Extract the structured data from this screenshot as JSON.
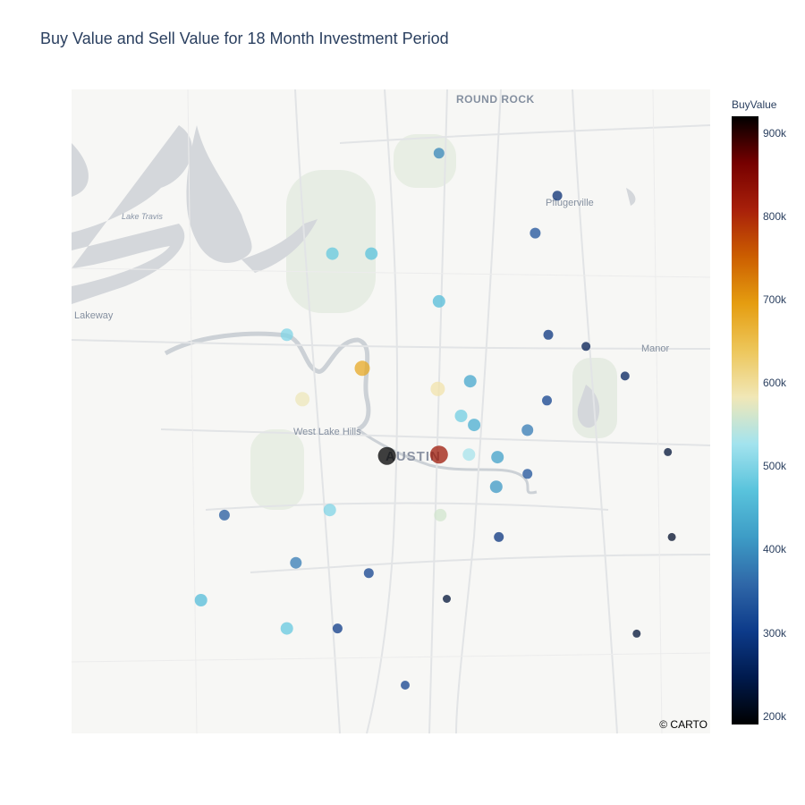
{
  "title": "Buy Value and Sell Value for 18 Month Investment Period",
  "attribution": "© CARTO",
  "map_labels": {
    "round_rock": "ROUND ROCK",
    "pflugerville": "Pflugerville",
    "lake_travis": "Lake Travis",
    "lakeway": "Lakeway",
    "manor": "Manor",
    "west_lake_hills": "West Lake Hills",
    "austin": "AUSTIN"
  },
  "colorbar": {
    "title": "BuyValue",
    "min": 190000,
    "max": 920000,
    "ticks": [
      {
        "label": "900k",
        "value": 900000
      },
      {
        "label": "800k",
        "value": 800000
      },
      {
        "label": "700k",
        "value": 700000
      },
      {
        "label": "600k",
        "value": 600000
      },
      {
        "label": "500k",
        "value": 500000
      },
      {
        "label": "400k",
        "value": 400000
      },
      {
        "label": "300k",
        "value": 300000
      },
      {
        "label": "200k",
        "value": 200000
      }
    ],
    "colorscale": [
      "#000000",
      "#001a4d",
      "#0d3b8a",
      "#2f67a8",
      "#3d9cc6",
      "#59c3dc",
      "#a3e3ee",
      "#f1e7b6",
      "#edc65a",
      "#e59d10",
      "#cc5e00",
      "#a8200a",
      "#760000",
      "#000000"
    ]
  },
  "chart_data": {
    "type": "scatter",
    "title": "Buy Value and Sell Value for 18 Month Investment Period",
    "color_variable": "BuyValue",
    "size_variable": "Sell Value",
    "points": [
      {
        "lon": -97.681,
        "lat": 30.503,
        "buy": 390000,
        "size": 12
      },
      {
        "lon": -97.59,
        "lat": 30.47,
        "buy": 280000,
        "size": 11
      },
      {
        "lon": -97.607,
        "lat": 30.441,
        "buy": 330000,
        "size": 12
      },
      {
        "lon": -97.763,
        "lat": 30.425,
        "buy": 480000,
        "size": 14
      },
      {
        "lon": -97.733,
        "lat": 30.425,
        "buy": 470000,
        "size": 14
      },
      {
        "lon": -97.681,
        "lat": 30.388,
        "buy": 460000,
        "size": 14
      },
      {
        "lon": -97.798,
        "lat": 30.362,
        "buy": 500000,
        "size": 14
      },
      {
        "lon": -97.597,
        "lat": 30.362,
        "buy": 290000,
        "size": 11
      },
      {
        "lon": -97.568,
        "lat": 30.353,
        "buy": 250000,
        "size": 10
      },
      {
        "lon": -97.74,
        "lat": 30.336,
        "buy": 680000,
        "size": 17
      },
      {
        "lon": -97.538,
        "lat": 30.33,
        "buy": 260000,
        "size": 10
      },
      {
        "lon": -97.682,
        "lat": 30.32,
        "buy": 590000,
        "size": 16
      },
      {
        "lon": -97.657,
        "lat": 30.326,
        "buy": 430000,
        "size": 14
      },
      {
        "lon": -97.786,
        "lat": 30.312,
        "buy": 580000,
        "size": 16
      },
      {
        "lon": -97.598,
        "lat": 30.311,
        "buy": 310000,
        "size": 11
      },
      {
        "lon": -97.664,
        "lat": 30.299,
        "buy": 490000,
        "size": 14
      },
      {
        "lon": -97.654,
        "lat": 30.292,
        "buy": 440000,
        "size": 14
      },
      {
        "lon": -97.613,
        "lat": 30.288,
        "buy": 380000,
        "size": 13
      },
      {
        "lon": -97.505,
        "lat": 30.271,
        "buy": 230000,
        "size": 9
      },
      {
        "lon": -97.721,
        "lat": 30.268,
        "buy": 920000,
        "size": 20
      },
      {
        "lon": -97.681,
        "lat": 30.269,
        "buy": 820000,
        "size": 20
      },
      {
        "lon": -97.658,
        "lat": 30.269,
        "buy": 530000,
        "size": 14
      },
      {
        "lon": -97.636,
        "lat": 30.267,
        "buy": 420000,
        "size": 14
      },
      {
        "lon": -97.613,
        "lat": 30.254,
        "buy": 330000,
        "size": 11
      },
      {
        "lon": -97.637,
        "lat": 30.244,
        "buy": 410000,
        "size": 14
      },
      {
        "lon": -97.846,
        "lat": 30.222,
        "buy": 340000,
        "size": 12
      },
      {
        "lon": -97.765,
        "lat": 30.226,
        "buy": 500000,
        "size": 14
      },
      {
        "lon": -97.68,
        "lat": 30.222,
        "buy": 560000,
        "size": 14
      },
      {
        "lon": -97.635,
        "lat": 30.205,
        "buy": 290000,
        "size": 11
      },
      {
        "lon": -97.502,
        "lat": 30.205,
        "buy": 220000,
        "size": 9
      },
      {
        "lon": -97.791,
        "lat": 30.185,
        "buy": 380000,
        "size": 13
      },
      {
        "lon": -97.735,
        "lat": 30.177,
        "buy": 310000,
        "size": 11
      },
      {
        "lon": -97.675,
        "lat": 30.157,
        "buy": 230000,
        "size": 9
      },
      {
        "lon": -97.864,
        "lat": 30.156,
        "buy": 460000,
        "size": 14
      },
      {
        "lon": -97.798,
        "lat": 30.134,
        "buy": 480000,
        "size": 14
      },
      {
        "lon": -97.759,
        "lat": 30.134,
        "buy": 300000,
        "size": 11
      },
      {
        "lon": -97.529,
        "lat": 30.13,
        "buy": 230000,
        "size": 9
      },
      {
        "lon": -97.707,
        "lat": 30.09,
        "buy": 310000,
        "size": 10
      }
    ]
  }
}
